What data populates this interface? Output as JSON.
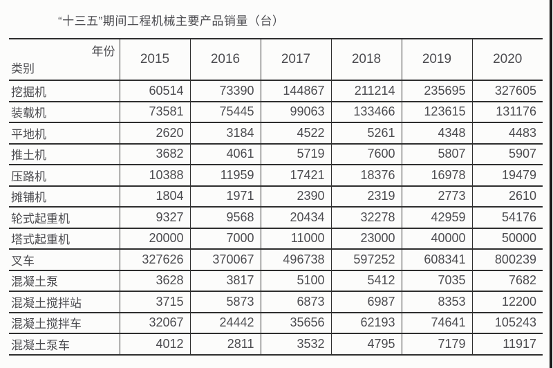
{
  "chart_data": {
    "type": "table",
    "title": "“十三五”期间工程机械主要产品销量（台）",
    "corner_top_right_label": "年份",
    "corner_bottom_left_label": "类别",
    "years": [
      "2015",
      "2016",
      "2017",
      "2018",
      "2019",
      "2020"
    ],
    "series": [
      {
        "name": "挖掘机",
        "values": [
          60514,
          73390,
          144867,
          211214,
          235695,
          327605
        ]
      },
      {
        "name": "装载机",
        "values": [
          73581,
          75445,
          99063,
          133466,
          123615,
          131176
        ]
      },
      {
        "name": "平地机",
        "values": [
          2620,
          3184,
          4522,
          5261,
          4348,
          4483
        ]
      },
      {
        "name": "推土机",
        "values": [
          3682,
          4061,
          5719,
          7600,
          5807,
          5907
        ]
      },
      {
        "name": "压路机",
        "values": [
          10388,
          11959,
          17421,
          18376,
          16978,
          19479
        ]
      },
      {
        "name": "摊铺机",
        "values": [
          1804,
          1971,
          2390,
          2319,
          2773,
          2610
        ]
      },
      {
        "name": "轮式起重机",
        "values": [
          9327,
          9568,
          20434,
          32278,
          42959,
          54176
        ]
      },
      {
        "name": "塔式起重机",
        "values": [
          20000,
          7000,
          11000,
          23000,
          40000,
          50000
        ]
      },
      {
        "name": "叉车",
        "values": [
          327626,
          370067,
          496738,
          597252,
          608341,
          800239
        ]
      },
      {
        "name": "混凝土泵",
        "values": [
          3628,
          3817,
          5100,
          5412,
          7035,
          7682
        ]
      },
      {
        "name": "混凝土搅拌站",
        "values": [
          3715,
          5873,
          6873,
          6987,
          8353,
          12200
        ]
      },
      {
        "name": "混凝土搅拌车",
        "values": [
          32067,
          24442,
          35656,
          62193,
          74641,
          105243
        ]
      },
      {
        "name": "混凝土泵车",
        "values": [
          4012,
          2811,
          3532,
          4795,
          7179,
          11917
        ]
      }
    ],
    "layout": {
      "grid": "horizontal rules full width, vertical rules internal only",
      "legend": "none"
    }
  },
  "colors": {
    "text": "#4c4c50",
    "border": "#2e2e2e",
    "background": "#fcfcfb",
    "right_edge_strip": "#1c1c1c"
  }
}
